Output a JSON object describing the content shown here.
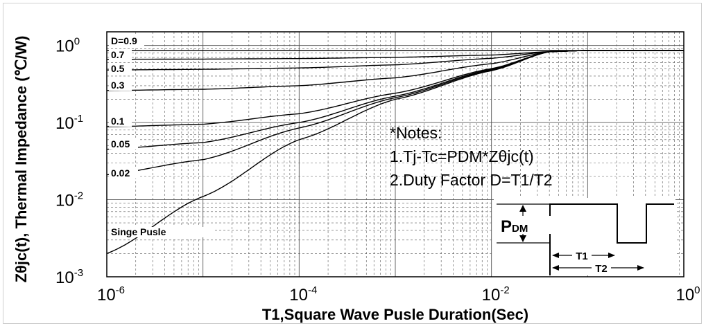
{
  "chart_data": {
    "type": "line",
    "title": "",
    "xlabel": "T1,Square Wave Pusle Duration(Sec)",
    "ylabel": "Zθjc(t), Thermal Impedance (℃/W)",
    "x_scale": "log",
    "y_scale": "log",
    "xlim": [
      1e-06,
      1
    ],
    "ylim": [
      0.001,
      1.5
    ],
    "grid": true,
    "x_ticks": [
      {
        "value": 1e-06,
        "base": "10",
        "exp": "-6"
      },
      {
        "value": 0.0001,
        "base": "10",
        "exp": "-4"
      },
      {
        "value": 0.01,
        "base": "10",
        "exp": "-2"
      },
      {
        "value": 1,
        "base": "10",
        "exp": "0"
      }
    ],
    "y_ticks": [
      {
        "value": 0.001,
        "base": "10",
        "exp": "-3"
      },
      {
        "value": 0.01,
        "base": "10",
        "exp": "-2"
      },
      {
        "value": 0.1,
        "base": "10",
        "exp": "-1"
      },
      {
        "value": 1,
        "base": "10",
        "exp": "0"
      }
    ],
    "series": [
      {
        "name": "D=0.9",
        "x": [
          1e-06,
          1e-05,
          0.0001,
          0.001,
          0.01,
          0.04,
          0.1,
          1
        ],
        "y": [
          0.86,
          0.86,
          0.86,
          0.86,
          0.86,
          0.86,
          0.86,
          0.86
        ]
      },
      {
        "name": "0.7",
        "x": [
          1e-06,
          1e-05,
          0.0001,
          0.001,
          0.01,
          0.04,
          0.1,
          1
        ],
        "y": [
          0.66,
          0.665,
          0.675,
          0.7,
          0.75,
          0.83,
          0.86,
          0.86
        ]
      },
      {
        "name": "0.5",
        "x": [
          1e-06,
          1e-05,
          0.0001,
          0.001,
          0.01,
          0.04,
          0.1,
          1
        ],
        "y": [
          0.48,
          0.49,
          0.51,
          0.56,
          0.68,
          0.83,
          0.86,
          0.86
        ]
      },
      {
        "name": "0.3",
        "x": [
          1e-06,
          1e-05,
          0.0001,
          0.001,
          0.01,
          0.04,
          0.1,
          1
        ],
        "y": [
          0.26,
          0.27,
          0.3,
          0.38,
          0.58,
          0.83,
          0.86,
          0.86
        ]
      },
      {
        "name": "0.1",
        "x": [
          1e-06,
          1e-05,
          0.0001,
          0.001,
          0.01,
          0.04,
          0.1,
          1
        ],
        "y": [
          0.088,
          0.095,
          0.13,
          0.24,
          0.5,
          0.83,
          0.86,
          0.86
        ]
      },
      {
        "name": "0.05",
        "x": [
          1e-06,
          1e-05,
          0.0001,
          0.001,
          0.01,
          0.04,
          0.1,
          1
        ],
        "y": [
          0.045,
          0.055,
          0.1,
          0.22,
          0.49,
          0.83,
          0.86,
          0.86
        ]
      },
      {
        "name": "0.02",
        "x": [
          1e-06,
          1e-05,
          0.0001,
          0.001,
          0.01,
          0.04,
          0.1,
          1
        ],
        "y": [
          0.021,
          0.033,
          0.085,
          0.21,
          0.48,
          0.83,
          0.86,
          0.86
        ]
      },
      {
        "name": "Singe Pusle",
        "x": [
          1e-06,
          1e-05,
          0.0001,
          0.001,
          0.01,
          0.04,
          0.1,
          1
        ],
        "y": [
          0.002,
          0.011,
          0.06,
          0.2,
          0.47,
          0.83,
          0.86,
          0.86
        ]
      }
    ],
    "notes": [
      "*Notes:",
      "1.Tj-Tc=PDM*Zθjc(t)",
      "2.Duty Factor D=T1/T2"
    ],
    "inset": {
      "pdm_label": "P",
      "pdm_sub": "DM",
      "t1_label": "T1",
      "t2_label": "T2"
    }
  },
  "colors": {
    "curve": "#000000",
    "grid": "#555555",
    "axis": "#000000"
  }
}
